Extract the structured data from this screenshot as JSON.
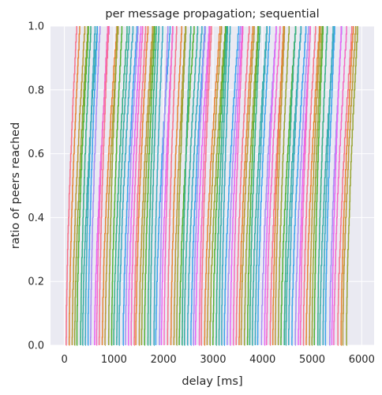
{
  "chart_data": {
    "type": "line",
    "title": "per message propagation; sequential",
    "xlabel": "delay [ms]",
    "ylabel": "ratio of peers reached",
    "xlim": [
      -280,
      6250
    ],
    "ylim": [
      0.0,
      1.0
    ],
    "xticks": [
      0,
      1000,
      2000,
      3000,
      4000,
      5000,
      6000
    ],
    "xtick_labels": [
      "0",
      "1000",
      "2000",
      "3000",
      "4000",
      "5000",
      "6000"
    ],
    "yticks": [
      0.0,
      0.2,
      0.4,
      0.6,
      0.8,
      1.0
    ],
    "ytick_labels": [
      "0.0",
      "0.2",
      "0.4",
      "0.6",
      "0.8",
      "1.0"
    ],
    "grid": true,
    "legend": "none",
    "background": "#eaeaf2",
    "grid_color": "#ffffff",
    "series_count": 100,
    "series_start_ms": {
      "first": 30,
      "last": 5680
    },
    "series_spread_ms": 240,
    "palette": [
      "#f77189",
      "#e68332",
      "#bb9832",
      "#97a431",
      "#50b131",
      "#34af84",
      "#36ada4",
      "#38aabf",
      "#3ba3ec",
      "#a48cf4",
      "#e866f4",
      "#f668c2"
    ]
  }
}
